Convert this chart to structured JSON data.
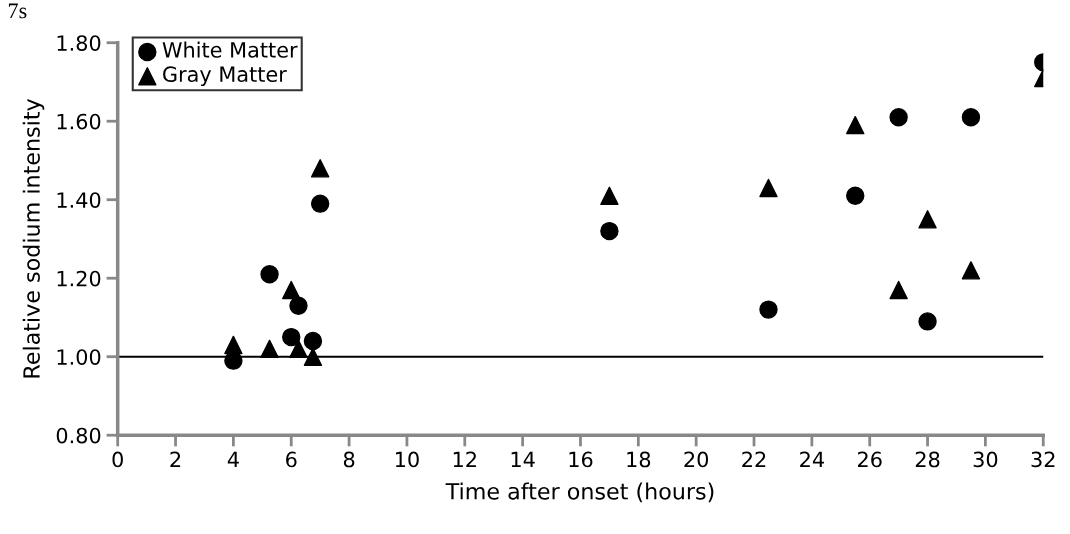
{
  "chart_data": {
    "type": "scatter",
    "xlabel": "Time after onset (hours)",
    "ylabel": "Relative sodium intensity",
    "annotations": [
      "7s"
    ],
    "series": [
      {
        "name": "White Matter",
        "color": "#000000",
        "marker": "circle",
        "x": [
          4,
          5.25,
          6,
          6.25,
          6.75,
          7,
          17,
          22.5,
          25.5,
          27,
          28,
          29.5,
          32
        ],
        "values": [
          0.99,
          1.21,
          1.05,
          1.13,
          1.04,
          1.39,
          1.32,
          1.12,
          1.41,
          1.61,
          1.09,
          1.61,
          1.75
        ]
      },
      {
        "name": "Gray Matter",
        "color": "#000000",
        "marker": "triangle",
        "x": [
          4,
          5.25,
          6,
          6.25,
          6.75,
          7,
          17,
          22.5,
          25.5,
          27,
          28,
          29.5,
          32
        ],
        "values": [
          1.03,
          1.02,
          1.17,
          1.02,
          1.0,
          1.48,
          1.41,
          1.43,
          1.59,
          1.17,
          1.35,
          1.22,
          1.71
        ]
      }
    ],
    "xlim": [
      0,
      32
    ],
    "xticks": [
      0,
      2,
      4,
      6,
      8,
      10,
      12,
      14,
      16,
      18,
      20,
      22,
      24,
      26,
      28,
      30,
      32
    ],
    "ylim": [
      0.8,
      1.8
    ],
    "yticks": [
      {
        "value": 0.8,
        "label": "0.80"
      },
      {
        "value": 1.0,
        "label": "1.00"
      },
      {
        "value": 1.2,
        "label": "1.20"
      },
      {
        "value": 1.4,
        "label": "1.40"
      },
      {
        "value": 1.6,
        "label": "1.60"
      },
      {
        "value": 1.8,
        "label": "1.80"
      }
    ],
    "ref_lines": [
      {
        "axis": "y",
        "value": 1.0,
        "color": "#000000"
      }
    ],
    "grid": false,
    "legend": "top left"
  }
}
